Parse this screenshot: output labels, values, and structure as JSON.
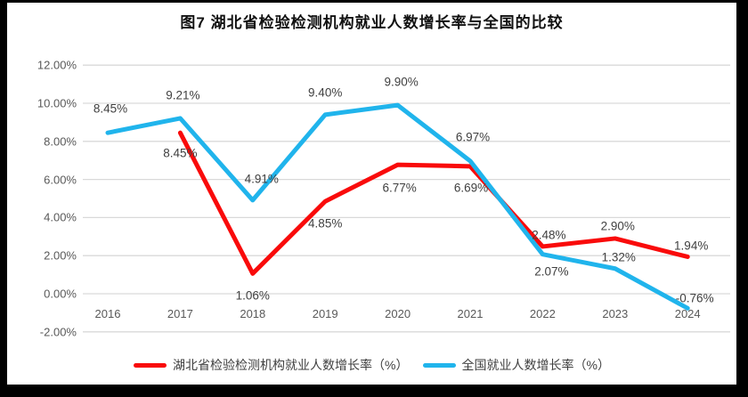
{
  "frame": {
    "border_color": "#000000",
    "background": "#ffffff"
  },
  "chart_data": {
    "type": "line",
    "title": "图7 湖北省检验检测机构就业人数增长率与全国的比较",
    "categories": [
      "2016",
      "2017",
      "2018",
      "2019",
      "2020",
      "2021",
      "2022",
      "2023",
      "2024"
    ],
    "y_ticks": [
      {
        "label": "12.00%",
        "value": 12
      },
      {
        "label": "10.00%",
        "value": 10
      },
      {
        "label": "8.00%",
        "value": 8
      },
      {
        "label": "6.00%",
        "value": 6
      },
      {
        "label": "4.00%",
        "value": 4
      },
      {
        "label": "2.00%",
        "value": 2
      },
      {
        "label": "0.00%",
        "value": 0
      },
      {
        "label": "-2.00%",
        "value": -2
      }
    ],
    "ylim": [
      -2,
      12
    ],
    "grid": "horizontal",
    "gridline_color": "#D9D9D9",
    "legend_position": "bottom",
    "series": [
      {
        "name": "湖北省检验检测机构就业人数增长率（%）",
        "color": "#F90B0B",
        "values": [
          null,
          8.45,
          1.06,
          4.85,
          6.77,
          6.69,
          2.48,
          2.9,
          1.94
        ],
        "labels": [
          "",
          "8.45%",
          "1.06%",
          "4.85%",
          "6.77%",
          "6.69%",
          "2.48%",
          "2.90%",
          "1.94%"
        ]
      },
      {
        "name": "全国就业人数增长率（%）",
        "color": "#20B4EC",
        "values": [
          8.45,
          9.21,
          4.91,
          9.4,
          9.9,
          6.97,
          2.07,
          1.32,
          -0.76
        ],
        "labels": [
          "8.45%",
          "9.21%",
          "4.91%",
          "9.40%",
          "9.90%",
          "6.97%",
          "2.07%",
          "1.32%",
          "-0.76%"
        ]
      }
    ]
  }
}
